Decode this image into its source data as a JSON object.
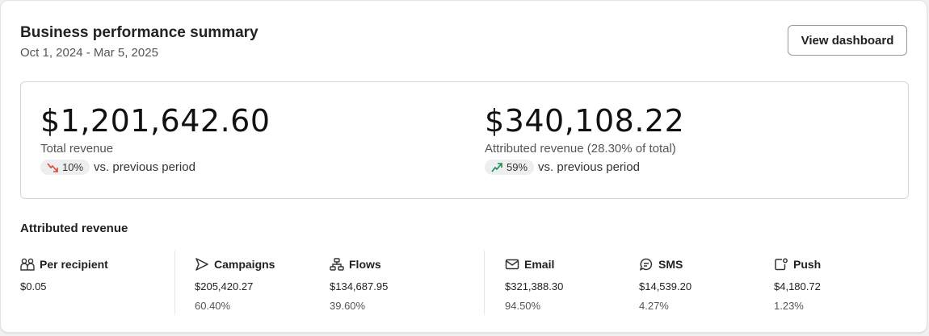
{
  "header": {
    "title": "Business performance summary",
    "date_range": "Oct 1, 2024 - Mar 5, 2025",
    "view_dashboard_label": "View dashboard"
  },
  "metrics": [
    {
      "value": "$1,201,642.60",
      "label": "Total revenue",
      "change": "10%",
      "direction": "down",
      "change_color": "#e0473a",
      "suffix": "vs. previous period"
    },
    {
      "value": "$340,108.22",
      "label": "Attributed revenue (28.30% of total)",
      "change": "59%",
      "direction": "up",
      "change_color": "#1e8a4c",
      "suffix": "vs. previous period"
    }
  ],
  "attributed": {
    "title": "Attributed revenue",
    "columns": [
      {
        "icon": "users-icon",
        "label": "Per recipient",
        "value": "$0.05"
      },
      {
        "icon": "send-icon",
        "label": "Campaigns",
        "value": "$205,420.27",
        "percent": "60.40%"
      },
      {
        "icon": "flows-icon",
        "label": "Flows",
        "value": "$134,687.95",
        "percent": "39.60%"
      },
      {
        "icon": "mail-icon",
        "label": "Email",
        "value": "$321,388.30",
        "percent": "94.50%"
      },
      {
        "icon": "sms-icon",
        "label": "SMS",
        "value": "$14,539.20",
        "percent": "4.27%"
      },
      {
        "icon": "push-icon",
        "label": "Push",
        "value": "$4,180.72",
        "percent": "1.23%"
      }
    ]
  }
}
